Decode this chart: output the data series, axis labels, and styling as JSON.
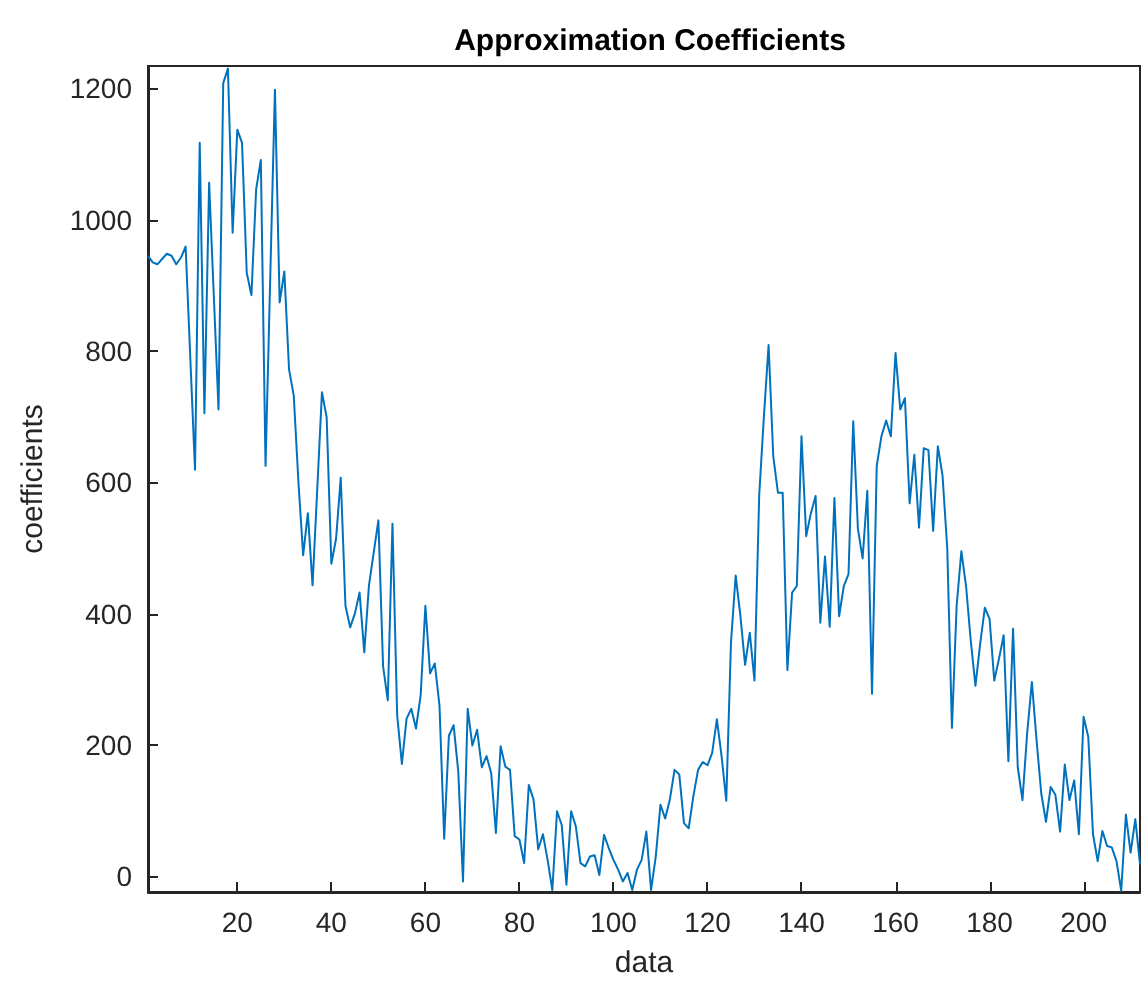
{
  "chart_data": {
    "type": "line",
    "title": "Approximation Coefficients",
    "xlabel": "data",
    "ylabel": "coefficients",
    "x": [
      1,
      2,
      3,
      4,
      5,
      6,
      7,
      8,
      9,
      11,
      12,
      13,
      14,
      16,
      17,
      18,
      19,
      20,
      21,
      22,
      23,
      24,
      25,
      26,
      28,
      29,
      30,
      31,
      32,
      33,
      34,
      35,
      36,
      38,
      39,
      40,
      41,
      42,
      43,
      44,
      45,
      46,
      47,
      48,
      50,
      51,
      52,
      53,
      54,
      55,
      56,
      57,
      58,
      59,
      60,
      61,
      62,
      63,
      64,
      65,
      66,
      67,
      68,
      69,
      70,
      71,
      72,
      73,
      74,
      75,
      76,
      77,
      78,
      79,
      80,
      81,
      82,
      83,
      84,
      85,
      86,
      87,
      88,
      89,
      90,
      91,
      92,
      93,
      94,
      95,
      96,
      97,
      98,
      99,
      100,
      101,
      102,
      103,
      104,
      105,
      106,
      107,
      108,
      109,
      110,
      111,
      112,
      113,
      114,
      115,
      116,
      117,
      118,
      119,
      120,
      121,
      122,
      123,
      124,
      125,
      126,
      127,
      128,
      129,
      130,
      131,
      132,
      133,
      134,
      135,
      136,
      137,
      138,
      139,
      140,
      141,
      142,
      143,
      144,
      145,
      146,
      147,
      148,
      149,
      150,
      151,
      152,
      153,
      154,
      155,
      156,
      157,
      158,
      159,
      160,
      161,
      162,
      163,
      164,
      165,
      166,
      167,
      168,
      169,
      170,
      171,
      172,
      173,
      174,
      175,
      176,
      177,
      178,
      179,
      180,
      181,
      182,
      183,
      184,
      185,
      186,
      187,
      188,
      189,
      190,
      191,
      192,
      193,
      194,
      195,
      196,
      197,
      198,
      199,
      200,
      201,
      202,
      203,
      204,
      205,
      206,
      207,
      208,
      209,
      210,
      211,
      212
    ],
    "series": [
      {
        "color": "#0072bd",
        "values": [
          945,
          935,
          932,
          940,
          948,
          945,
          932,
          942,
          959,
          619,
          1117,
          705,
          1056,
          711,
          1208,
          1230,
          980,
          1137,
          1117,
          919,
          885,
          1046,
          1091,
          625,
          1198,
          874,
          921,
          772,
          732,
          600,
          489,
          553,
          443,
          737,
          699,
          476,
          514,
          607,
          412,
          379,
          400,
          432,
          341,
          443,
          542,
          320,
          268,
          537,
          245,
          171,
          240,
          255,
          225,
          276,
          412,
          309,
          324,
          260,
          57,
          214,
          230,
          159,
          -8,
          255,
          199,
          223,
          166,
          183,
          157,
          66,
          198,
          167,
          162,
          61,
          56,
          20,
          139,
          117,
          41,
          64,
          25,
          -21,
          99,
          78,
          -13,
          99,
          76,
          20,
          15,
          30,
          32,
          2,
          63,
          43,
          25,
          10,
          -8,
          5,
          -21,
          10,
          25,
          68,
          -21,
          30,
          109,
          88,
          117,
          162,
          155,
          81,
          73,
          122,
          162,
          174,
          169,
          188,
          239,
          183,
          115,
          356,
          458,
          397,
          322,
          371,
          298,
          580,
          700,
          809,
          639,
          584,
          584,
          314,
          432,
          442,
          670,
          518,
          553,
          579,
          386,
          487,
          380,
          576,
          396,
          442,
          460,
          693,
          529,
          484,
          587,
          278,
          625,
          670,
          694,
          670,
          797,
          711,
          728,
          568,
          642,
          531,
          652,
          649,
          526,
          655,
          610,
          500,
          226,
          412,
          495,
          442,
          359,
          290,
          354,
          409,
          392,
          298,
          331,
          367,
          175,
          377,
          166,
          116,
          218,
          296,
          207,
          126,
          83,
          136,
          124,
          68,
          170,
          116,
          146,
          64,
          243,
          212,
          64,
          23,
          69,
          46,
          44,
          23,
          -22,
          94,
          36,
          87,
          18
        ]
      }
    ],
    "xlim": [
      1,
      212
    ],
    "ylim": [
      -24,
      1234
    ],
    "xticks": [
      20,
      40,
      60,
      80,
      100,
      120,
      140,
      160,
      180,
      200
    ],
    "yticks": [
      0,
      200,
      400,
      600,
      800,
      1000,
      1200
    ],
    "grid": false,
    "marker": "none",
    "line_style": "solid"
  }
}
